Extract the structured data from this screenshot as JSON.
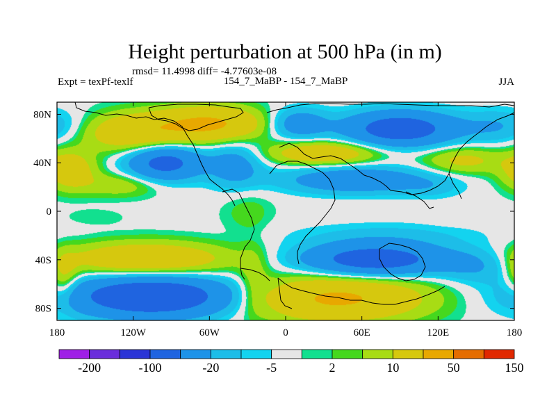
{
  "chart_data": {
    "type": "heatmap",
    "title": "Height perturbation at 500 hPa (in m)",
    "stats_line": "rmsd= 11.4998 diff= -4.77603e-08",
    "left_label": "Expt = texPf-texlf",
    "center_label": "154_7_MaBP - 154_7_MaBP",
    "right_label": "JJA",
    "x_ticks": [
      "180",
      "120W",
      "60W",
      "0",
      "60E",
      "120E",
      "180"
    ],
    "x_tick_values": [
      -180,
      -120,
      -60,
      0,
      60,
      120,
      180
    ],
    "y_ticks": [
      "80N",
      "40N",
      "0",
      "40S",
      "80S"
    ],
    "y_tick_values": [
      80,
      40,
      0,
      -40,
      -80
    ],
    "xlim": [
      -180,
      180
    ],
    "ylim": [
      -90,
      90
    ],
    "colorbar": {
      "colors": [
        "#9f1fe6",
        "#6a2ddb",
        "#2b34d6",
        "#1f64e0",
        "#1e93e8",
        "#1dbde8",
        "#13d3ef",
        "#e6e6e6",
        "#12e08f",
        "#45d81e",
        "#a8dc14",
        "#d6c80e",
        "#e8a800",
        "#e56d00",
        "#e12800"
      ],
      "labels": [
        "-200",
        "-100",
        "-20",
        "-5",
        "2",
        "10",
        "50",
        "150"
      ],
      "label_after_box": [
        1,
        3,
        5,
        7,
        9,
        11,
        13,
        15
      ]
    },
    "field": {
      "units": "m",
      "features": [
        {
          "lon": -120,
          "lat": 65,
          "sx": 28,
          "sy": 11,
          "v": 40
        },
        {
          "lon": -60,
          "lat": 72,
          "sx": 30,
          "sy": 10,
          "v": 55
        },
        {
          "lon": 90,
          "lat": 68,
          "sx": 30,
          "sy": 10,
          "v": -75
        },
        {
          "lon": 10,
          "lat": 72,
          "sx": 16,
          "sy": 9,
          "v": -35
        },
        {
          "lon": 170,
          "lat": 70,
          "sx": 22,
          "sy": 10,
          "v": -20
        },
        {
          "lon": -95,
          "lat": 40,
          "sx": 20,
          "sy": 10,
          "v": -65
        },
        {
          "lon": -170,
          "lat": 34,
          "sx": 14,
          "sy": 11,
          "v": 35
        },
        {
          "lon": -130,
          "lat": 22,
          "sx": 22,
          "sy": 7,
          "v": 18
        },
        {
          "lon": -40,
          "lat": 38,
          "sx": 15,
          "sy": 13,
          "v": -30
        },
        {
          "lon": 30,
          "lat": 48,
          "sx": 30,
          "sy": 7,
          "v": 40
        },
        {
          "lon": 55,
          "lat": 26,
          "sx": 40,
          "sy": 8,
          "v": -40
        },
        {
          "lon": 140,
          "lat": 42,
          "sx": 22,
          "sy": 8,
          "v": 25
        },
        {
          "lon": 115,
          "lat": 20,
          "sx": 18,
          "sy": 7,
          "v": -10
        },
        {
          "lon": -30,
          "lat": 0,
          "sx": 14,
          "sy": 13,
          "v": 8
        },
        {
          "lon": -150,
          "lat": -5,
          "sx": 18,
          "sy": 5,
          "v": 4
        },
        {
          "lon": 130,
          "lat": -5,
          "sx": 15,
          "sy": 5,
          "v": 3
        },
        {
          "lon": 80,
          "lat": -20,
          "sx": 55,
          "sy": 8,
          "v": -12
        },
        {
          "lon": -110,
          "lat": -40,
          "sx": 45,
          "sy": 10,
          "v": 45
        },
        {
          "lon": -105,
          "lat": -70,
          "sx": 45,
          "sy": 12,
          "v": -90
        },
        {
          "lon": -175,
          "lat": -55,
          "sx": 8,
          "sy": 14,
          "v": 25
        },
        {
          "lon": 70,
          "lat": -40,
          "sx": 38,
          "sy": 9,
          "v": -75
        },
        {
          "lon": 150,
          "lat": -45,
          "sx": 20,
          "sy": 10,
          "v": -20
        },
        {
          "lon": 40,
          "lat": -72,
          "sx": 48,
          "sy": 13,
          "v": 55
        },
        {
          "lon": -25,
          "lat": -55,
          "sx": 8,
          "sy": 20,
          "v": 12
        }
      ]
    }
  }
}
